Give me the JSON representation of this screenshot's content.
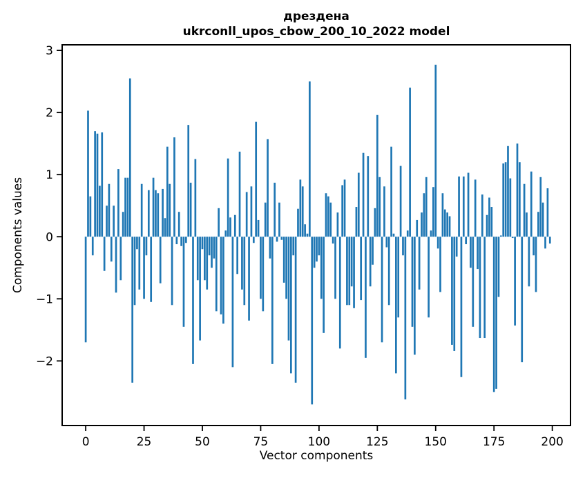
{
  "chart_data": {
    "type": "bar",
    "title_line1": "дрездена",
    "title_line2": "ukrconll_upos_cbow_200_10_2022 model",
    "xlabel": "Vector components",
    "ylabel": "Components values",
    "x_note": "x = vector component index, 0 through 199",
    "x_ticks": [
      0,
      25,
      50,
      75,
      100,
      125,
      150,
      175,
      200
    ],
    "y_ticks": [
      3,
      2,
      1,
      0,
      -1,
      -2
    ],
    "xlim": [
      -10.1,
      207.8
    ],
    "ylim": [
      -3.04,
      3.09
    ],
    "grid": false,
    "legend": "none",
    "bar_color": "#1f77b4",
    "background_color": "#ffffff",
    "values": [
      -1.7,
      2.03,
      0.65,
      -0.3,
      1.7,
      1.66,
      0.82,
      1.68,
      -0.55,
      0.5,
      0.85,
      -0.4,
      0.5,
      -0.9,
      1.09,
      -0.7,
      0.4,
      0.95,
      0.95,
      2.55,
      -2.35,
      -1.1,
      -0.2,
      -0.85,
      0.85,
      -1.0,
      -0.3,
      0.75,
      -1.05,
      0.95,
      0.75,
      0.7,
      -0.75,
      0.77,
      0.3,
      1.45,
      0.85,
      -1.1,
      1.6,
      -0.12,
      0.4,
      -0.15,
      -1.45,
      -0.1,
      1.8,
      0.87,
      -2.05,
      1.25,
      -0.7,
      -1.67,
      -0.2,
      -0.7,
      -0.85,
      -0.3,
      -0.5,
      -0.35,
      -1.2,
      0.46,
      -1.25,
      -1.4,
      0.1,
      1.26,
      0.31,
      -2.1,
      0.35,
      -0.6,
      1.37,
      -0.85,
      -1.1,
      0.72,
      -1.35,
      0.81,
      -0.1,
      1.85,
      0.27,
      -1.0,
      -1.2,
      0.55,
      1.57,
      -0.35,
      -2.05,
      0.87,
      -0.08,
      0.55,
      -0.05,
      -0.74,
      -1.0,
      -1.67,
      -2.2,
      -0.3,
      -2.35,
      0.45,
      0.92,
      0.81,
      0.2,
      0.05,
      2.5,
      -2.7,
      -0.5,
      -0.4,
      -0.3,
      -1.0,
      -1.55,
      0.7,
      0.65,
      0.55,
      -0.11,
      -1.0,
      0.39,
      -1.8,
      0.83,
      0.92,
      -1.1,
      -1.1,
      -0.8,
      -1.15,
      0.48,
      1.03,
      -1.02,
      1.35,
      -1.95,
      1.3,
      -0.8,
      -0.45,
      0.46,
      1.96,
      0.96,
      -1.7,
      0.81,
      -0.17,
      -1.1,
      1.45,
      0.05,
      -2.2,
      -1.3,
      1.14,
      -0.3,
      -2.62,
      0.1,
      2.4,
      -1.45,
      -1.9,
      0.27,
      -0.85,
      0.39,
      0.7,
      0.96,
      -1.3,
      0.1,
      0.8,
      2.77,
      -0.19,
      -0.89,
      0.7,
      0.44,
      0.39,
      0.33,
      -1.74,
      -1.84,
      -0.32,
      0.97,
      -2.26,
      0.97,
      -0.12,
      1.03,
      -0.5,
      -1.45,
      0.92,
      -0.52,
      -1.63,
      0.68,
      -1.63,
      0.35,
      0.63,
      0.48,
      -2.5,
      -2.45,
      -0.97,
      0.02,
      1.18,
      1.2,
      1.46,
      0.94,
      -0.02,
      -1.43,
      1.5,
      1.2,
      -2.02,
      0.85,
      0.39,
      -0.8,
      1.05,
      -0.3,
      -0.89,
      0.4,
      0.96,
      0.55,
      -0.19,
      0.78,
      -0.11
    ]
  }
}
